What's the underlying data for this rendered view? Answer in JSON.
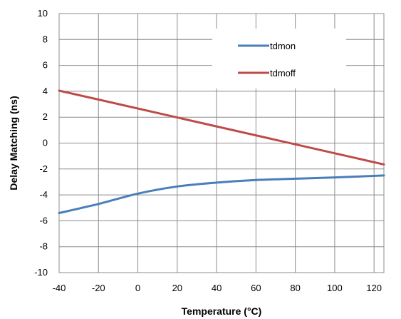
{
  "chart_data": {
    "type": "line",
    "xlabel": "Temperature (°C)",
    "ylabel": "Delay Matching (ns)",
    "xlim": [
      -40,
      125
    ],
    "ylim": [
      -10,
      10
    ],
    "x_ticks": [
      -40,
      -20,
      0,
      20,
      40,
      60,
      80,
      100,
      120
    ],
    "y_ticks": [
      -10,
      -8,
      -6,
      -4,
      -2,
      0,
      2,
      4,
      6,
      8,
      10
    ],
    "grid": true,
    "legend_position": "top-right",
    "series": [
      {
        "name": "tdmon",
        "color": "#4a7ebb",
        "x": [
          -40,
          -20,
          0,
          20,
          40,
          60,
          80,
          100,
          125
        ],
        "y": [
          -5.4,
          -4.7,
          -3.9,
          -3.35,
          -3.05,
          -2.85,
          -2.75,
          -2.65,
          -2.5
        ]
      },
      {
        "name": "tdmoff",
        "color": "#be4b48",
        "x": [
          -40,
          125
        ],
        "y": [
          4.05,
          -1.65
        ]
      }
    ]
  }
}
